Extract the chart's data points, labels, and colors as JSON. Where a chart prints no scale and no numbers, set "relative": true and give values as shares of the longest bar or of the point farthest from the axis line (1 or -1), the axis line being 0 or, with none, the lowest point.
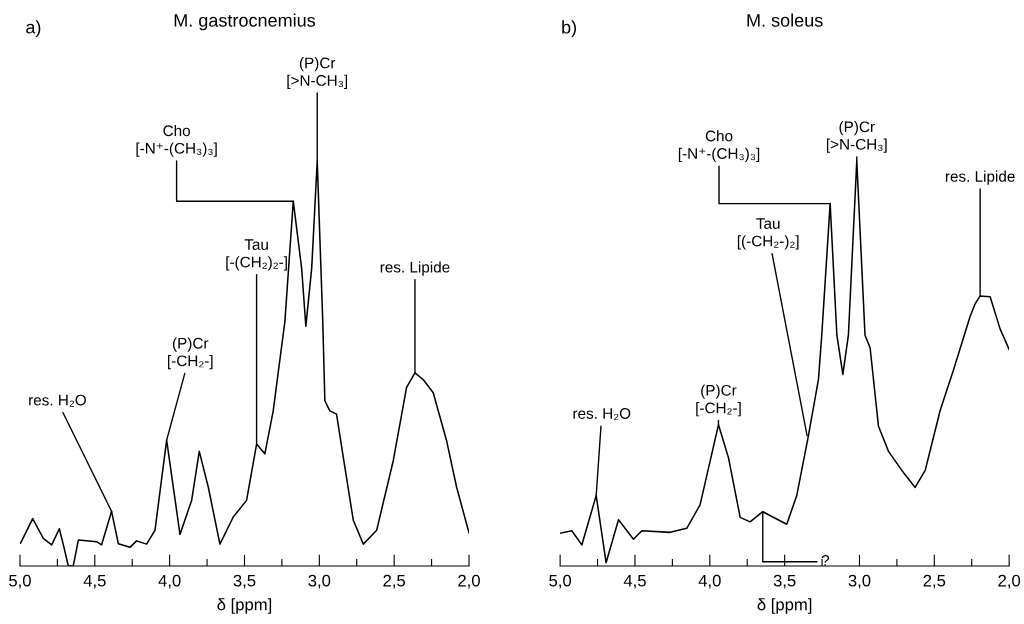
{
  "chart_data": [
    {
      "type": "line",
      "title": "M. gastrocnemius",
      "xlabel": "δ [ppm]",
      "relative": true,
      "tick_labels": "x",
      "color": "#000000",
      "x": [
        4.995,
        4.915,
        4.844,
        4.788,
        4.737,
        4.71,
        4.677,
        4.644,
        4.61,
        4.488,
        4.455,
        4.388,
        4.343,
        4.265,
        4.221,
        4.154,
        4.098,
        4.02,
        3.931,
        3.853,
        3.802,
        3.742,
        3.664,
        3.575,
        3.486,
        3.419,
        3.364,
        3.308,
        3.23,
        3.174,
        3.118,
        3.09,
        3.051,
        3.014,
        2.977,
        2.963,
        2.93,
        2.885,
        2.84,
        2.773,
        2.706,
        2.617,
        2.506,
        2.417,
        2.361,
        2.305,
        2.239,
        2.15,
        2.083,
        2.0
      ],
      "values": [
        0.057,
        0.117,
        0.068,
        0.052,
        0.092,
        0.052,
        0.0,
        0.0,
        0.064,
        0.06,
        0.052,
        0.135,
        0.055,
        0.046,
        0.062,
        0.054,
        0.088,
        0.311,
        0.078,
        0.162,
        0.283,
        0.195,
        0.054,
        0.121,
        0.162,
        0.301,
        0.277,
        0.383,
        0.604,
        0.901,
        0.735,
        0.592,
        0.735,
        1.0,
        0.604,
        0.408,
        0.383,
        0.375,
        0.269,
        0.113,
        0.054,
        0.088,
        0.26,
        0.441,
        0.477,
        0.46,
        0.428,
        0.31,
        0.195,
        0.082
      ],
      "xlim": [
        5.0,
        2.0
      ],
      "xticks": [
        {
          "value": 5.0,
          "label": "5,0"
        },
        {
          "value": 4.75,
          "label": null
        },
        {
          "value": 4.5,
          "label": "4,5"
        },
        {
          "value": 4.25,
          "label": null
        },
        {
          "value": 4.0,
          "label": "4,0"
        },
        {
          "value": 3.75,
          "label": null
        },
        {
          "value": 3.5,
          "label": "3,5"
        },
        {
          "value": 3.25,
          "label": null
        },
        {
          "value": 3.0,
          "label": "3,0"
        },
        {
          "value": 2.75,
          "label": null
        },
        {
          "value": 2.5,
          "label": "2,5"
        },
        {
          "value": 2.25,
          "label": null
        },
        {
          "value": 2.0,
          "label": "2,0"
        }
      ],
      "annotations": [
        "a)",
        {
          "text": "res. H₂O",
          "x": 4.388,
          "y": 0.135
        },
        {
          "text": "(P)Cr\n[-CH₂-]",
          "x": 4.02,
          "y": 0.311
        },
        {
          "text": "Tau\n[-(CH₂)₂-]",
          "x": 3.419,
          "y": 0.301
        },
        {
          "text": "Cho\n[-N⁺-(CH₃)₃]",
          "x": 3.174,
          "y": 0.901
        },
        {
          "text": "(P)Cr\n[>N-CH₃]",
          "x": 3.014,
          "y": 1.0
        },
        {
          "text": "res. Lipide",
          "x": 2.361,
          "y": 0.477
        }
      ]
    },
    {
      "type": "line",
      "title": "M. soleus",
      "xlabel": "δ [ppm]",
      "relative": true,
      "tick_labels": "x",
      "color": "#000000",
      "x": [
        5.0,
        4.922,
        4.855,
        4.759,
        4.693,
        4.61,
        4.51,
        4.454,
        4.265,
        4.154,
        4.065,
        3.942,
        3.875,
        3.797,
        3.731,
        3.646,
        3.486,
        3.419,
        3.341,
        3.274,
        3.252,
        3.196,
        3.151,
        3.111,
        3.074,
        3.018,
        2.963,
        2.929,
        2.873,
        2.806,
        2.717,
        2.628,
        2.561,
        2.461,
        2.372,
        2.261,
        2.228,
        2.194,
        2.127,
        2.06,
        2.0
      ],
      "values": [
        0.081,
        0.087,
        0.052,
        0.174,
        0.008,
        0.114,
        0.066,
        0.087,
        0.083,
        0.093,
        0.151,
        0.349,
        0.267,
        0.12,
        0.109,
        0.134,
        0.103,
        0.174,
        0.322,
        0.461,
        0.57,
        0.895,
        0.57,
        0.473,
        0.57,
        1.0,
        0.57,
        0.539,
        0.345,
        0.283,
        0.236,
        0.194,
        0.236,
        0.384,
        0.484,
        0.616,
        0.647,
        0.667,
        0.665,
        0.585,
        0.535
      ],
      "xlim": [
        5.0,
        2.0
      ],
      "xticks": [
        {
          "value": 5.0,
          "label": "5,0"
        },
        {
          "value": 4.75,
          "label": null
        },
        {
          "value": 4.5,
          "label": "4,5"
        },
        {
          "value": 4.25,
          "label": null
        },
        {
          "value": 4.0,
          "label": "4,0"
        },
        {
          "value": 3.75,
          "label": null
        },
        {
          "value": 3.5,
          "label": "3,5"
        },
        {
          "value": 3.25,
          "label": null
        },
        {
          "value": 3.0,
          "label": "3,0"
        },
        {
          "value": 2.75,
          "label": null
        },
        {
          "value": 2.5,
          "label": "2,5"
        },
        {
          "value": 2.25,
          "label": null
        },
        {
          "value": 2.0,
          "label": "2,0"
        }
      ],
      "annotations": [
        "b)",
        {
          "text": "res. H₂O",
          "x": 4.759,
          "y": 0.174
        },
        {
          "text": "(P)Cr\n[-CH₂-]",
          "x": 3.942,
          "y": 0.349
        },
        {
          "text": "Tau\n[(-CH₂-)₂]",
          "x": 3.35,
          "y": 0.322
        },
        {
          "text": "Cho\n[-N⁺-(CH₃)₃]",
          "x": 3.196,
          "y": 0.895
        },
        {
          "text": "(P)Cr\n[>N-CH₃]",
          "x": 3.018,
          "y": 1.0
        },
        {
          "text": "res. Lipide",
          "x": 2.194,
          "y": 0.667
        },
        {
          "text": "?",
          "x": 3.646,
          "y": 0.134
        }
      ]
    }
  ]
}
